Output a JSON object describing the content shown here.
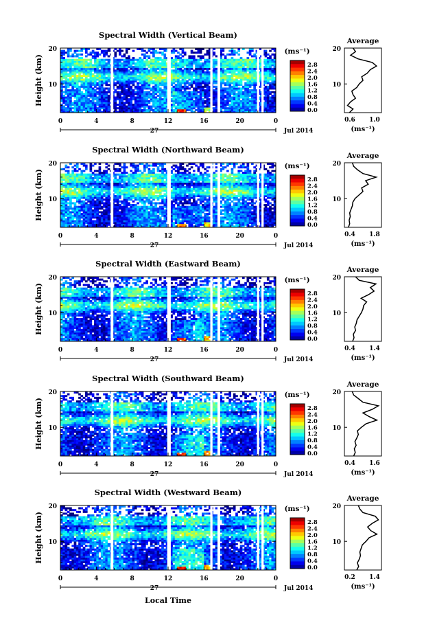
{
  "figure": {
    "xlabel": "Local Time",
    "ylabel": "Height (km)",
    "unit_label": "(ms⁻¹)",
    "date_label": "Jul 2014",
    "day_label": "27",
    "avg_title": "Average",
    "avg_unit": "(ms⁻¹)",
    "colormap": "jet",
    "colors": {
      "low": "#00008f",
      "mid": "#00ffff",
      "high": "#ff0000",
      "gap": "#ffffff"
    }
  },
  "chart_data": [
    {
      "type": "heatmap",
      "title": "Spectral Width (Vertical Beam)",
      "beam": "vertical",
      "x_ticks": [
        "0",
        "4",
        "8",
        "12",
        "16",
        "20",
        "0"
      ],
      "xlim": [
        0,
        24
      ],
      "y_ticks": [
        "20",
        "10"
      ],
      "ylim": [
        2,
        20
      ],
      "colorbar_ticks": [
        "2.8",
        "2.4",
        "2.0",
        "1.6",
        "1.2",
        "0.8",
        "0.4",
        "0.0"
      ],
      "colorbar_range": [
        0,
        2.8
      ],
      "data_gaps_hours": [
        [
          5.6,
          5.9
        ],
        [
          11.9,
          12.3
        ],
        [
          16.7,
          16.95
        ],
        [
          17.5,
          17.8
        ],
        [
          21.9,
          22.15
        ],
        [
          22.4,
          22.65
        ]
      ],
      "average_profile": {
        "xlim": [
          0.6,
          1.2
        ],
        "x_ticks": [
          "0.6",
          "1.0"
        ],
        "y_ticks": [
          "20",
          "10"
        ],
        "height_km": [
          2,
          3,
          4,
          5,
          6,
          7,
          8,
          9,
          10,
          11,
          12,
          13,
          14,
          15,
          16,
          17,
          18,
          19,
          20
        ],
        "width_ms": [
          0.68,
          0.74,
          0.65,
          0.7,
          0.78,
          0.74,
          0.72,
          0.8,
          0.84,
          0.9,
          0.88,
          0.97,
          1.02,
          1.12,
          1.05,
          0.82,
          0.7,
          0.78,
          0.74
        ]
      }
    },
    {
      "type": "heatmap",
      "title": "Spectral Width (Northward Beam)",
      "beam": "northward",
      "x_ticks": [
        "0",
        "4",
        "8",
        "12",
        "16",
        "20",
        "0"
      ],
      "xlim": [
        0,
        24
      ],
      "y_ticks": [
        "20",
        "10"
      ],
      "ylim": [
        2,
        20
      ],
      "colorbar_ticks": [
        "2.8",
        "2.4",
        "2.0",
        "1.6",
        "1.2",
        "0.8",
        "0.4",
        "0.0"
      ],
      "colorbar_range": [
        0,
        2.8
      ],
      "data_gaps_hours": [
        [
          5.6,
          5.9
        ],
        [
          11.9,
          12.3
        ],
        [
          16.7,
          16.95
        ],
        [
          17.5,
          17.8
        ],
        [
          21.9,
          22.15
        ],
        [
          22.4,
          22.65
        ]
      ],
      "average_profile": {
        "xlim": [
          0.4,
          1.8
        ],
        "x_ticks": [
          "0.4",
          "1.8"
        ],
        "y_ticks": [
          "20",
          "10"
        ],
        "height_km": [
          2,
          3,
          4,
          5,
          6,
          7,
          8,
          9,
          10,
          11,
          12,
          13,
          14,
          15,
          16,
          17,
          18,
          19,
          20
        ],
        "width_ms": [
          0.55,
          0.6,
          0.58,
          0.62,
          0.6,
          0.65,
          0.7,
          0.72,
          0.8,
          0.95,
          1.1,
          1.05,
          1.3,
          1.2,
          1.6,
          1.1,
          0.9,
          0.75,
          0.7
        ]
      }
    },
    {
      "type": "heatmap",
      "title": "Spectral Width (Eastward Beam)",
      "beam": "eastward",
      "x_ticks": [
        "0",
        "4",
        "8",
        "12",
        "16",
        "20",
        "0"
      ],
      "xlim": [
        0,
        24
      ],
      "y_ticks": [
        "20",
        "10"
      ],
      "ylim": [
        2,
        20
      ],
      "colorbar_ticks": [
        "2.8",
        "2.4",
        "2.0",
        "1.6",
        "1.2",
        "0.8",
        "0.4",
        "0.0"
      ],
      "colorbar_range": [
        0,
        2.8
      ],
      "data_gaps_hours": [
        [
          5.6,
          5.9
        ],
        [
          11.9,
          12.3
        ],
        [
          16.7,
          16.95
        ],
        [
          17.5,
          17.8
        ],
        [
          21.9,
          22.15
        ],
        [
          22.4,
          22.65
        ]
      ],
      "average_profile": {
        "xlim": [
          0.4,
          1.4
        ],
        "x_ticks": [
          "0.4",
          "1.4"
        ],
        "y_ticks": [
          "20",
          "10"
        ],
        "height_km": [
          2,
          3,
          4,
          5,
          6,
          7,
          8,
          9,
          10,
          11,
          12,
          13,
          14,
          15,
          16,
          17,
          18,
          19,
          20
        ],
        "width_ms": [
          0.62,
          0.66,
          0.64,
          0.7,
          0.68,
          0.72,
          0.74,
          0.8,
          0.86,
          0.9,
          0.92,
          1.0,
          0.85,
          1.05,
          1.2,
          1.1,
          1.25,
          0.8,
          0.7
        ]
      }
    },
    {
      "type": "heatmap",
      "title": "Spectral Width (Southward Beam)",
      "beam": "southward",
      "x_ticks": [
        "0",
        "4",
        "8",
        "12",
        "16",
        "20",
        "0"
      ],
      "xlim": [
        0,
        24
      ],
      "y_ticks": [
        "20",
        "10"
      ],
      "ylim": [
        2,
        20
      ],
      "colorbar_ticks": [
        "2.8",
        "2.4",
        "2.0",
        "1.6",
        "1.2",
        "0.8",
        "0.4",
        "0.0"
      ],
      "colorbar_range": [
        0,
        2.8
      ],
      "data_gaps_hours": [
        [
          5.6,
          5.9
        ],
        [
          11.9,
          12.3
        ],
        [
          16.7,
          16.95
        ],
        [
          17.5,
          17.8
        ],
        [
          21.9,
          22.15
        ],
        [
          22.4,
          22.65
        ]
      ],
      "average_profile": {
        "xlim": [
          0.4,
          1.6
        ],
        "x_ticks": [
          "0.4",
          "1.6"
        ],
        "y_ticks": [
          "20",
          "10"
        ],
        "height_km": [
          2,
          3,
          4,
          5,
          6,
          7,
          8,
          9,
          10,
          11,
          12,
          13,
          14,
          15,
          16,
          17,
          18,
          19,
          20
        ],
        "width_ms": [
          0.7,
          0.75,
          0.72,
          0.78,
          0.74,
          0.8,
          0.85,
          0.82,
          0.95,
          1.1,
          1.45,
          1.2,
          1.0,
          1.3,
          1.5,
          1.0,
          0.85,
          0.7,
          0.65
        ]
      }
    },
    {
      "type": "heatmap",
      "title": "Spectral Width (Westward Beam)",
      "beam": "westward",
      "x_ticks": [
        "0",
        "4",
        "8",
        "12",
        "16",
        "20",
        "0"
      ],
      "xlim": [
        0,
        24
      ],
      "y_ticks": [
        "20",
        "10"
      ],
      "ylim": [
        2,
        20
      ],
      "colorbar_ticks": [
        "2.8",
        "2.4",
        "2.0",
        "1.6",
        "1.2",
        "0.8",
        "0.4",
        "0.0"
      ],
      "colorbar_range": [
        0,
        2.8
      ],
      "data_gaps_hours": [
        [
          5.6,
          5.9
        ],
        [
          11.9,
          12.3
        ],
        [
          16.7,
          16.95
        ],
        [
          17.5,
          17.8
        ],
        [
          21.9,
          22.15
        ],
        [
          22.4,
          22.65
        ]
      ],
      "average_profile": {
        "xlim": [
          0.2,
          1.4
        ],
        "x_ticks": [
          "0.2",
          "1.4"
        ],
        "y_ticks": [
          "20",
          "10"
        ],
        "height_km": [
          2,
          3,
          4,
          5,
          6,
          7,
          8,
          9,
          10,
          11,
          12,
          13,
          14,
          15,
          16,
          17,
          18,
          19,
          20
        ],
        "width_ms": [
          0.6,
          0.66,
          0.62,
          0.68,
          0.72,
          0.7,
          0.74,
          0.78,
          0.9,
          1.0,
          1.25,
          1.05,
          0.95,
          1.1,
          1.3,
          1.2,
          0.8,
          0.7,
          0.65
        ]
      }
    }
  ]
}
